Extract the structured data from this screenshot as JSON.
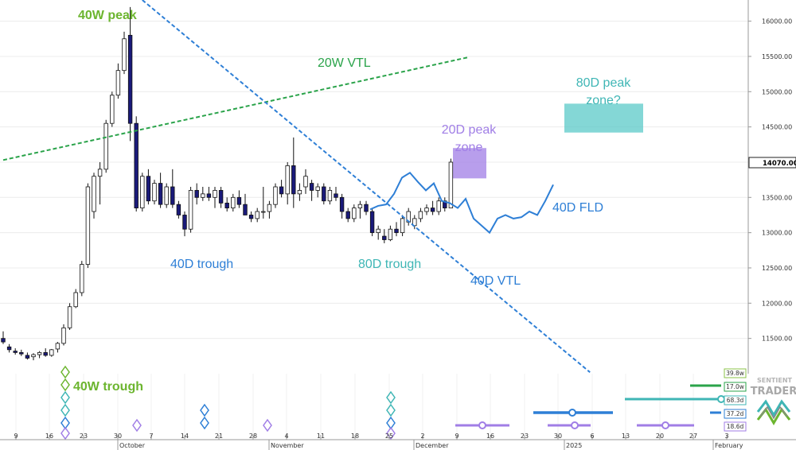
{
  "chart_data": {
    "type": "candlestick",
    "title": "",
    "xlabel": "",
    "ylabel": "",
    "ylim": [
      11000,
      16300
    ],
    "y_ticks": [
      11500,
      12000,
      12500,
      13000,
      13500,
      14000,
      14500,
      15000,
      15500,
      16000
    ],
    "y_tick_labels": [
      "11500.00",
      "12000.00",
      "12500.00",
      "13000.00",
      "13500.00",
      "14000.00",
      "14500.00",
      "15000.00",
      "15500.00",
      "16000.00"
    ],
    "last_price": 14070,
    "last_price_label": "14070.00",
    "x_tick_labels": [
      "9",
      "16",
      "23",
      "30",
      "7",
      "14",
      "21",
      "28",
      "4",
      "11",
      "18",
      "25",
      "2",
      "9",
      "16",
      "23",
      "30",
      "6",
      "13",
      "20",
      "27",
      "3"
    ],
    "x_period_labels": [
      "October",
      "November",
      "December",
      "2025",
      "February"
    ],
    "candles": [
      {
        "o": 11500,
        "h": 11600,
        "l": 11420,
        "c": 11450
      },
      {
        "o": 11380,
        "h": 11420,
        "l": 11300,
        "c": 11340
      },
      {
        "o": 11320,
        "h": 11360,
        "l": 11270,
        "c": 11300
      },
      {
        "o": 11300,
        "h": 11340,
        "l": 11250,
        "c": 11280
      },
      {
        "o": 11260,
        "h": 11300,
        "l": 11200,
        "c": 11220
      },
      {
        "o": 11240,
        "h": 11290,
        "l": 11190,
        "c": 11270
      },
      {
        "o": 11270,
        "h": 11320,
        "l": 11220,
        "c": 11300
      },
      {
        "o": 11300,
        "h": 11360,
        "l": 11240,
        "c": 11260
      },
      {
        "o": 11260,
        "h": 11350,
        "l": 11240,
        "c": 11340
      },
      {
        "o": 11350,
        "h": 11450,
        "l": 11300,
        "c": 11430
      },
      {
        "o": 11430,
        "h": 11700,
        "l": 11400,
        "c": 11650
      },
      {
        "o": 11650,
        "h": 12000,
        "l": 11620,
        "c": 11950
      },
      {
        "o": 11950,
        "h": 12200,
        "l": 11930,
        "c": 12150
      },
      {
        "o": 12150,
        "h": 12600,
        "l": 12100,
        "c": 12550
      },
      {
        "o": 12550,
        "h": 13700,
        "l": 12500,
        "c": 13650
      },
      {
        "o": 13300,
        "h": 13850,
        "l": 13200,
        "c": 13800
      },
      {
        "o": 13800,
        "h": 14000,
        "l": 13400,
        "c": 13900
      },
      {
        "o": 13900,
        "h": 14600,
        "l": 13850,
        "c": 14550
      },
      {
        "o": 14550,
        "h": 15000,
        "l": 14500,
        "c": 14950
      },
      {
        "o": 14950,
        "h": 15400,
        "l": 14900,
        "c": 15300
      },
      {
        "o": 15300,
        "h": 15850,
        "l": 15250,
        "c": 15750
      },
      {
        "o": 15800,
        "h": 16200,
        "l": 14300,
        "c": 14550
      },
      {
        "o": 14550,
        "h": 14650,
        "l": 13300,
        "c": 13350
      },
      {
        "o": 13350,
        "h": 13850,
        "l": 13300,
        "c": 13800
      },
      {
        "o": 13800,
        "h": 13900,
        "l": 13400,
        "c": 13450
      },
      {
        "o": 13450,
        "h": 13750,
        "l": 13400,
        "c": 13700
      },
      {
        "o": 13700,
        "h": 13850,
        "l": 13350,
        "c": 13400
      },
      {
        "o": 13400,
        "h": 13700,
        "l": 13350,
        "c": 13650
      },
      {
        "o": 13650,
        "h": 13900,
        "l": 13350,
        "c": 13400
      },
      {
        "o": 13400,
        "h": 13450,
        "l": 13200,
        "c": 13250
      },
      {
        "o": 13250,
        "h": 13300,
        "l": 12950,
        "c": 13050
      },
      {
        "o": 13050,
        "h": 13650,
        "l": 13000,
        "c": 13600
      },
      {
        "o": 13600,
        "h": 13700,
        "l": 13400,
        "c": 13500
      },
      {
        "o": 13500,
        "h": 13650,
        "l": 13450,
        "c": 13550
      },
      {
        "o": 13550,
        "h": 13650,
        "l": 13450,
        "c": 13500
      },
      {
        "o": 13500,
        "h": 13650,
        "l": 13350,
        "c": 13600
      },
      {
        "o": 13600,
        "h": 13650,
        "l": 13350,
        "c": 13420
      },
      {
        "o": 13420,
        "h": 13500,
        "l": 13300,
        "c": 13350
      },
      {
        "o": 13350,
        "h": 13550,
        "l": 13300,
        "c": 13500
      },
      {
        "o": 13500,
        "h": 13600,
        "l": 13350,
        "c": 13400
      },
      {
        "o": 13400,
        "h": 13550,
        "l": 13250,
        "c": 13250
      },
      {
        "o": 13250,
        "h": 13300,
        "l": 13150,
        "c": 13200
      },
      {
        "o": 13200,
        "h": 13350,
        "l": 13150,
        "c": 13300
      },
      {
        "o": 13300,
        "h": 13650,
        "l": 13200,
        "c": 13300
      },
      {
        "o": 13300,
        "h": 13450,
        "l": 13200,
        "c": 13400
      },
      {
        "o": 13400,
        "h": 13700,
        "l": 13350,
        "c": 13650
      },
      {
        "o": 13650,
        "h": 13750,
        "l": 13500,
        "c": 13550
      },
      {
        "o": 13550,
        "h": 14000,
        "l": 13400,
        "c": 13950
      },
      {
        "o": 13950,
        "h": 14350,
        "l": 13350,
        "c": 13550
      },
      {
        "o": 13550,
        "h": 13700,
        "l": 13450,
        "c": 13600
      },
      {
        "o": 13650,
        "h": 13900,
        "l": 13550,
        "c": 13800
      },
      {
        "o": 13700,
        "h": 13750,
        "l": 13450,
        "c": 13600
      },
      {
        "o": 13600,
        "h": 13700,
        "l": 13500,
        "c": 13650
      },
      {
        "o": 13650,
        "h": 13700,
        "l": 13400,
        "c": 13450
      },
      {
        "o": 13450,
        "h": 13650,
        "l": 13400,
        "c": 13600
      },
      {
        "o": 13550,
        "h": 13650,
        "l": 13450,
        "c": 13500
      },
      {
        "o": 13500,
        "h": 13550,
        "l": 13200,
        "c": 13300
      },
      {
        "o": 13300,
        "h": 13350,
        "l": 13150,
        "c": 13200
      },
      {
        "o": 13200,
        "h": 13400,
        "l": 13150,
        "c": 13350
      },
      {
        "o": 13350,
        "h": 13450,
        "l": 13200,
        "c": 13400
      },
      {
        "o": 13400,
        "h": 13450,
        "l": 13250,
        "c": 13300
      },
      {
        "o": 13300,
        "h": 13350,
        "l": 12950,
        "c": 13000
      },
      {
        "o": 13000,
        "h": 13100,
        "l": 12900,
        "c": 13050
      },
      {
        "o": 12950,
        "h": 13050,
        "l": 12850,
        "c": 12900
      },
      {
        "o": 12900,
        "h": 13100,
        "l": 12880,
        "c": 13050
      },
      {
        "o": 13050,
        "h": 13150,
        "l": 12950,
        "c": 13000
      },
      {
        "o": 13000,
        "h": 13250,
        "l": 12950,
        "c": 13200
      },
      {
        "o": 13150,
        "h": 13350,
        "l": 13100,
        "c": 13300
      },
      {
        "o": 13100,
        "h": 13250,
        "l": 13050,
        "c": 13200
      },
      {
        "o": 13200,
        "h": 13350,
        "l": 13150,
        "c": 13300
      },
      {
        "o": 13300,
        "h": 13400,
        "l": 13250,
        "c": 13350
      },
      {
        "o": 13350,
        "h": 13450,
        "l": 13250,
        "c": 13300
      },
      {
        "o": 13300,
        "h": 13500,
        "l": 13250,
        "c": 13450
      },
      {
        "o": 13450,
        "h": 13500,
        "l": 13300,
        "c": 13350
      },
      {
        "o": 13350,
        "h": 14050,
        "l": 13350,
        "c": 14000
      }
    ],
    "projections": {
      "fld": {
        "label": "40D FLD",
        "points": [
          [
            13330,
            13380,
            13400,
            13550,
            13780,
            13850,
            13720,
            13600,
            13700,
            13450,
            13420,
            13350,
            13480,
            13200,
            13100,
            13000,
            13200,
            13250,
            13200,
            13220,
            13300,
            13250,
            13450,
            13680
          ]
        ]
      },
      "vtl_20w": {
        "label": "20W VTL",
        "from": [
          0,
          14030
        ],
        "to": [
          77,
          15490
        ]
      },
      "vtl_40d": {
        "label": "40D VTL",
        "from": [
          23,
          16300
        ],
        "to": [
          97,
          11020
        ]
      }
    },
    "zones": [
      {
        "label_lines": [
          "20D peak",
          "zone"
        ],
        "color": "#a07ee6",
        "y_range": [
          13770,
          14200
        ]
      },
      {
        "label_lines": [
          "80D peak",
          "zone?"
        ],
        "color": "#5bcac8",
        "y_range": [
          14420,
          14830
        ]
      }
    ],
    "annotations": [
      {
        "text": "40W peak",
        "color": "#6cb52f"
      },
      {
        "text": "40W trough",
        "color": "#6cb52f"
      },
      {
        "text": "40D trough",
        "color": "#2e7fd6"
      },
      {
        "text": "80D trough",
        "color": "#3fb6b5"
      },
      {
        "text": "40D VTL",
        "color": "#2e7fd6"
      },
      {
        "text": "40D FLD",
        "color": "#2e7fd6"
      },
      {
        "text": "20W VTL",
        "color": "#2aa34a"
      }
    ],
    "cycle_periods": [
      {
        "label": "39.8w",
        "color": "#8bc34a"
      },
      {
        "label": "17.0w",
        "color": "#2aa34a"
      },
      {
        "label": "68.3d",
        "color": "#3fb6b5"
      },
      {
        "label": "37.2d",
        "color": "#2e7fd6"
      },
      {
        "label": "18.6d",
        "color": "#a07ee6"
      }
    ],
    "grid": true
  },
  "branding": {
    "name": "SENTIENT",
    "name2": "TRADER"
  }
}
